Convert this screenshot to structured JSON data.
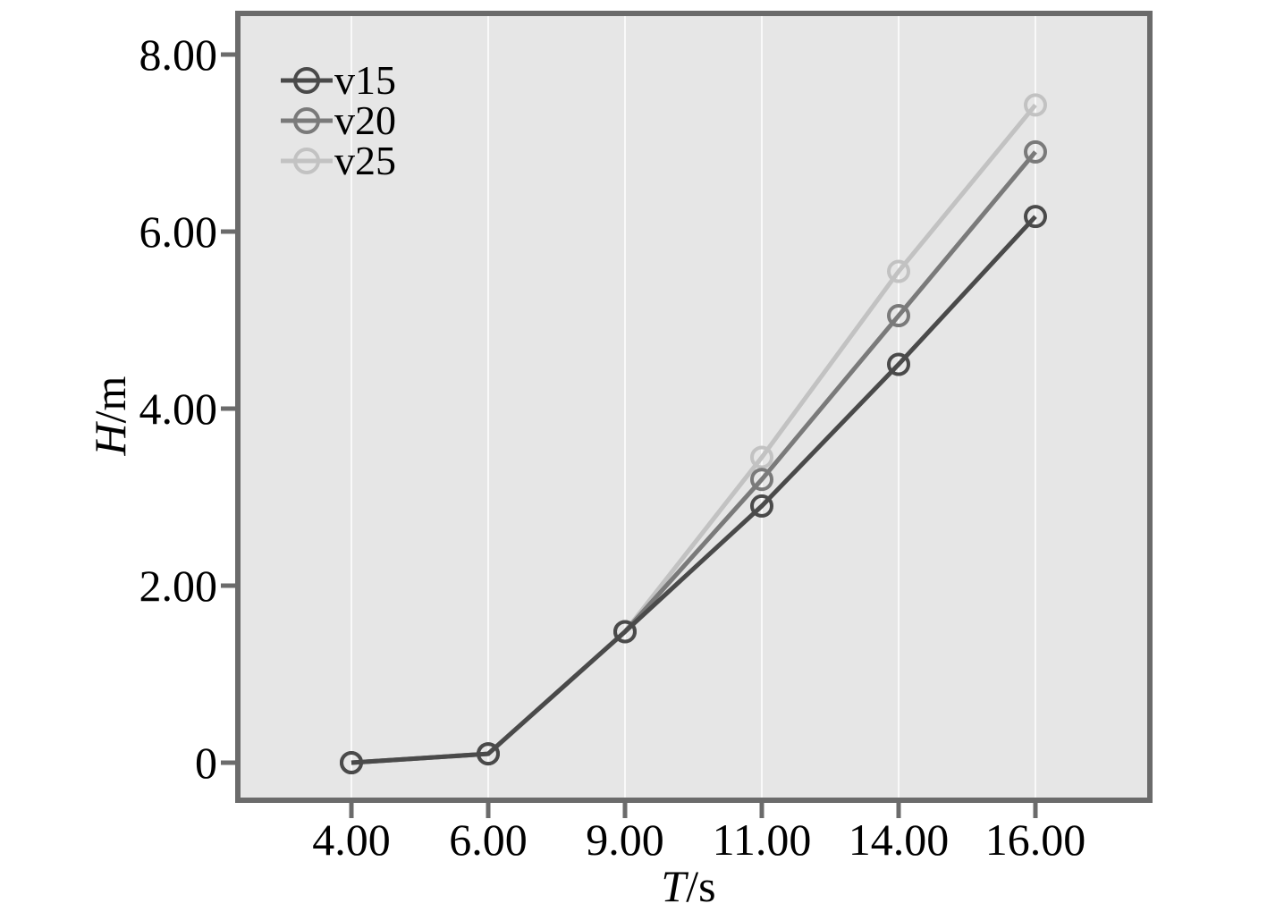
{
  "chart_data": {
    "type": "line",
    "title": "",
    "xlabel": {
      "symbol": "T",
      "unit": "/s"
    },
    "ylabel": {
      "symbol": "H",
      "unit": "/m"
    },
    "categories": [
      "4.00",
      "6.00",
      "9.00",
      "11.00",
      "14.00",
      "16.00"
    ],
    "x": [
      4,
      6,
      9,
      11,
      14,
      16
    ],
    "y_ticks": [
      {
        "value": 0,
        "label": "0"
      },
      {
        "value": 2,
        "label": "2.00"
      },
      {
        "value": 4,
        "label": "4.00"
      },
      {
        "value": 6,
        "label": "6.00"
      },
      {
        "value": 8,
        "label": "8.00"
      }
    ],
    "ylim": [
      0,
      8
    ],
    "grid": true,
    "legend_position": "top-left",
    "series": [
      {
        "name": "v15",
        "color": "#4a4a4a",
        "values": [
          0.0,
          0.1,
          1.48,
          2.9,
          4.5,
          6.17
        ]
      },
      {
        "name": "v20",
        "color": "#7a7a7a",
        "values": [
          0.0,
          0.1,
          1.48,
          3.2,
          5.05,
          6.9
        ]
      },
      {
        "name": "v25",
        "color": "#c2c2c2",
        "values": [
          0.0,
          0.1,
          1.48,
          3.45,
          5.55,
          7.43
        ]
      }
    ],
    "colors": {
      "plot_background": "#e6e6e6",
      "frame": "#6b6b6b",
      "gridline": "#ffffff"
    }
  }
}
